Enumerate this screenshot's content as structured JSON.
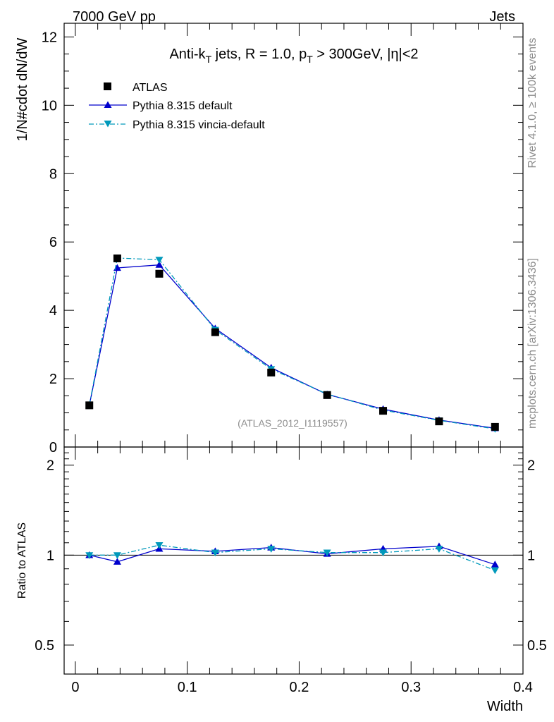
{
  "header": {
    "energy_label": "7000 GeV pp",
    "process_label": "Jets"
  },
  "side_labels": {
    "rivet": "Rivet 4.1.0, ≥ 100k events",
    "source": "mcplots.cern.ch [arXiv:1306.3436]"
  },
  "chart_data": [
    {
      "type": "scatter",
      "panel": "main",
      "title": {
        "prefix": "Anti-k",
        "prefix_sub": "T",
        "middle": " jets, R = 1.0, p",
        "middle_sub": "T",
        "suffix": " > 300GeV, |η|<2"
      },
      "ylabel": "1/N#cdot dN/dW",
      "ylim": [
        0,
        12.4
      ],
      "yticks": [
        0,
        2,
        4,
        6,
        8,
        10,
        12
      ],
      "xlim": [
        -0.01,
        0.4
      ],
      "watermark": "(ATLAS_2012_I1119557)",
      "legend_position": "top-left",
      "x": [
        0.0125,
        0.0375,
        0.075,
        0.125,
        0.175,
        0.225,
        0.275,
        0.325,
        0.375
      ],
      "series": [
        {
          "name": "ATLAS",
          "style": "markers",
          "marker": "square",
          "color": "#000000",
          "values": [
            1.22,
            5.52,
            5.07,
            3.36,
            2.18,
            1.52,
            1.06,
            0.75,
            0.59
          ]
        },
        {
          "name": "Pythia 8.315 default",
          "style": "solid",
          "marker": "triangle-up",
          "color": "#0000cc",
          "values": [
            1.22,
            5.24,
            5.33,
            3.47,
            2.32,
            1.54,
            1.11,
            0.79,
            0.55
          ]
        },
        {
          "name": "Pythia 8.315 vincia-default",
          "style": "dashdot",
          "marker": "triangle-down",
          "color": "#0099bb",
          "values": [
            1.23,
            5.53,
            5.48,
            3.43,
            2.28,
            1.55,
            1.08,
            0.78,
            0.53
          ]
        }
      ]
    },
    {
      "type": "line",
      "panel": "ratio",
      "ylabel": "Ratio to ATLAS",
      "ylim": [
        0.4,
        2.3
      ],
      "yticks": [
        0.5,
        1,
        2
      ],
      "ytick_labels": [
        "0.5",
        "1",
        "2"
      ],
      "xlabel": "Width",
      "xlim": [
        -0.01,
        0.4
      ],
      "xticks": [
        0,
        0.1,
        0.2,
        0.3,
        0.4
      ],
      "xtick_labels": [
        "0",
        "0.1",
        "0.2",
        "0.3",
        "0.4"
      ],
      "x": [
        0.0125,
        0.0375,
        0.075,
        0.125,
        0.175,
        0.225,
        0.275,
        0.325,
        0.375
      ],
      "series": [
        {
          "name": "Pythia 8.315 default",
          "style": "solid",
          "marker": "triangle-up",
          "color": "#0000cc",
          "values": [
            1.0,
            0.95,
            1.05,
            1.03,
            1.06,
            1.01,
            1.05,
            1.07,
            0.93
          ]
        },
        {
          "name": "Pythia 8.315 vincia-default",
          "style": "dashdot",
          "marker": "triangle-down",
          "color": "#0099bb",
          "values": [
            1.0,
            1.0,
            1.08,
            1.02,
            1.05,
            1.02,
            1.02,
            1.05,
            0.89
          ]
        }
      ]
    }
  ]
}
